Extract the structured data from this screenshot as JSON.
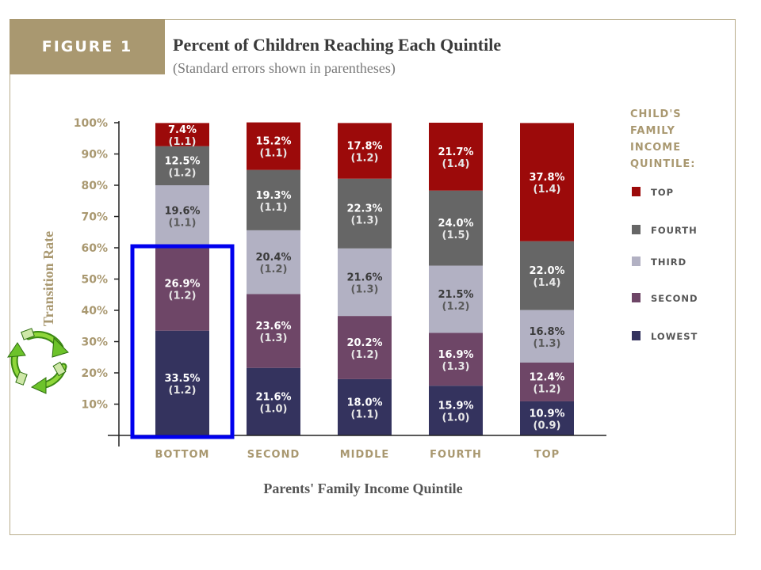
{
  "figure": {
    "badge": "FIGURE 1",
    "title": "Percent of Children Reaching Each Quintile",
    "subtitle": "(Standard errors shown in parentheses)"
  },
  "colors": {
    "lowest": "#34335e",
    "second": "#6e4667",
    "third": "#b2b1c3",
    "fourth": "#666666",
    "top": "#9c0a0a",
    "accent": "#a99870",
    "highlight": "#0000ee"
  },
  "chart_data": {
    "type": "bar",
    "stacked": true,
    "title": "Percent of Children Reaching Each Quintile",
    "subtitle": "(Standard errors shown in parentheses)",
    "xlabel": "Parents' Family Income Quintile",
    "ylabel": "Transition Rate",
    "ylim": [
      0,
      100
    ],
    "yticks": [
      "100%",
      "90%",
      "80%",
      "70%",
      "60%",
      "50%",
      "40%",
      "30%",
      "20%",
      "10%"
    ],
    "yticks_values": [
      100,
      90,
      80,
      70,
      60,
      50,
      40,
      30,
      20,
      10
    ],
    "categories": [
      "Bottom",
      "Second",
      "Middle",
      "Fourth",
      "Top"
    ],
    "legend_title": [
      "Child's",
      "Family",
      "Income",
      "Quintile:"
    ],
    "legend_position": "right",
    "series": [
      {
        "name": "Lowest",
        "color_key": "lowest",
        "values": [
          33.5,
          21.6,
          18.0,
          15.9,
          10.9
        ],
        "labels": [
          "33.5%",
          "21.6%",
          "18.0%",
          "15.9%",
          "10.9%"
        ],
        "se": [
          "(1.2)",
          "(1.0)",
          "(1.1)",
          "(1.0)",
          "(0.9)"
        ]
      },
      {
        "name": "Second",
        "color_key": "second",
        "values": [
          26.9,
          23.6,
          20.2,
          16.9,
          12.4
        ],
        "labels": [
          "26.9%",
          "23.6%",
          "20.2%",
          "16.9%",
          "12.4%"
        ],
        "se": [
          "(1.2)",
          "(1.3)",
          "(1.2)",
          "(1.3)",
          "(1.2)"
        ]
      },
      {
        "name": "Third",
        "color_key": "third",
        "values": [
          19.6,
          20.4,
          21.6,
          21.5,
          16.8
        ],
        "labels": [
          "19.6%",
          "20.4%",
          "21.6%",
          "21.5%",
          "16.8%"
        ],
        "se": [
          "(1.1)",
          "(1.2)",
          "(1.3)",
          "(1.2)",
          "(1.3)"
        ]
      },
      {
        "name": "Fourth",
        "color_key": "fourth",
        "values": [
          12.5,
          19.3,
          22.3,
          24.0,
          22.0
        ],
        "labels": [
          "12.5%",
          "19.3%",
          "22.3%",
          "24.0%",
          "22.0%"
        ],
        "se": [
          "(1.2)",
          "(1.1)",
          "(1.3)",
          "(1.5)",
          "(1.4)"
        ]
      },
      {
        "name": "Top",
        "color_key": "top",
        "values": [
          7.4,
          15.2,
          17.8,
          21.7,
          37.8
        ],
        "labels": [
          "7.4%",
          "15.2%",
          "17.8%",
          "21.7%",
          "37.8%"
        ],
        "se": [
          "(1.1)",
          "(1.1)",
          "(1.2)",
          "(1.4)",
          "(1.4)"
        ]
      }
    ],
    "legend_order": [
      "Top",
      "Fourth",
      "Third",
      "Second",
      "Lowest"
    ],
    "highlight": {
      "category": "Bottom",
      "series_range": [
        "Lowest",
        "Second"
      ],
      "ylim": [
        0,
        61
      ]
    },
    "grid": false
  },
  "overlay": {
    "icon": "recycle-money-icon"
  }
}
